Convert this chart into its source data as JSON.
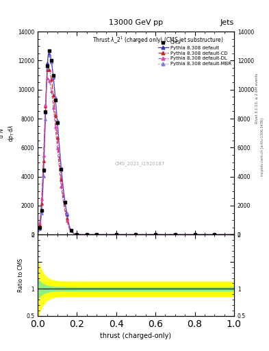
{
  "title_top": "13000 GeV pp",
  "title_right": "Jets",
  "watermark": "CMS_2021_I1920187",
  "rivet_label": "Rivet 3.1.10, ≥ 2.6M events",
  "arxiv_label": "mcplots.cern.ch [arXiv:1306.3436]",
  "xlabel": "thrust (charged-only)",
  "ylim_main": [
    0,
    14000
  ],
  "ylim_ratio": [
    0.5,
    2.0
  ],
  "xlim": [
    0,
    1
  ],
  "legend_entries": [
    {
      "label": "CMS",
      "color": "black",
      "marker": "s",
      "linestyle": "none"
    },
    {
      "label": "Pythia 8.308 default",
      "color": "#3333cc",
      "marker": "^",
      "linestyle": "-"
    },
    {
      "label": "Pythia 8.308 default-CD",
      "color": "#cc2222",
      "marker": "^",
      "linestyle": "-."
    },
    {
      "label": "Pythia 8.308 default-DL",
      "color": "#dd44aa",
      "marker": "^",
      "linestyle": "--"
    },
    {
      "label": "Pythia 8.308 default-MBR",
      "color": "#7777dd",
      "marker": "^",
      "linestyle": ":"
    }
  ],
  "band_green_lower": 0.97,
  "band_green_upper": 1.03,
  "band_yellow_lower": 0.87,
  "band_yellow_upper": 1.13
}
